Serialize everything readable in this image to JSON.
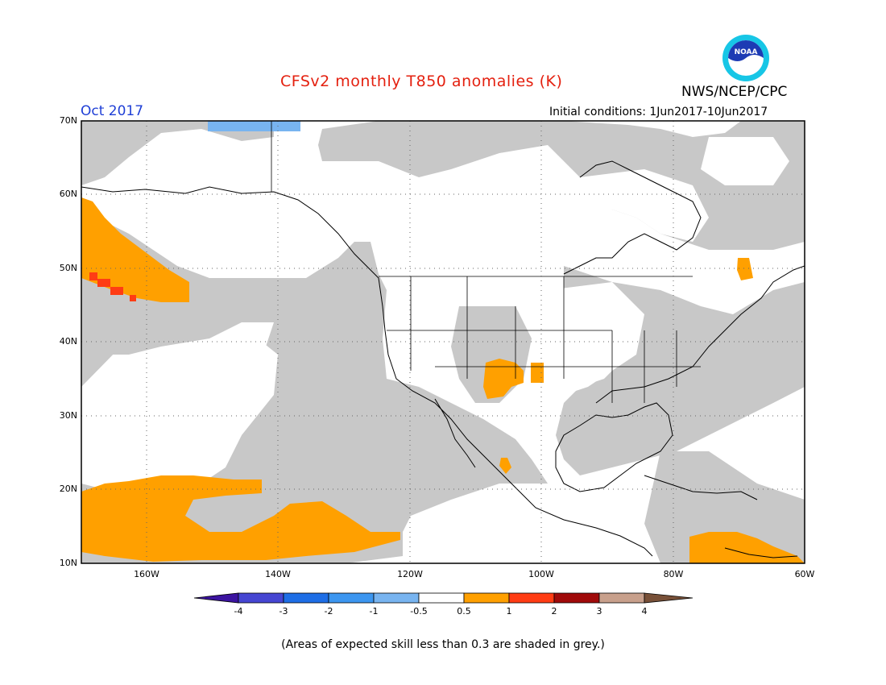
{
  "header": {
    "title": "CFSv2 monthly T850 anomalies (K)",
    "agency": "NWS/NCEP/CPC",
    "month": "Oct 2017",
    "initial_conditions": "Initial conditions: 1Jun2017-10Jun2017",
    "logo_text": "NOAA"
  },
  "map": {
    "lat_labels": [
      "70N",
      "60N",
      "50N",
      "40N",
      "30N",
      "20N",
      "10N"
    ],
    "lon_labels": [
      "160W",
      "140W",
      "120W",
      "100W",
      "80W",
      "60W"
    ],
    "colors": {
      "skill_mask": "#c8c8c8",
      "ocean_land": "#ffffff",
      "positive_0_5_1": "#ffa000",
      "positive_1_2": "#ff3c14",
      "negative_minus1_minus0_5": "#78b4f0"
    }
  },
  "colorbar": {
    "tick_labels": [
      "-4",
      "-3",
      "-2",
      "-1",
      "-0.5",
      "0.5",
      "1",
      "2",
      "3",
      "4"
    ],
    "colors": [
      "#3c14a0",
      "#4646d2",
      "#1e6ee6",
      "#3c96f0",
      "#78b4f0",
      "#ffffff",
      "#ffa000",
      "#ff3c14",
      "#a00a0a",
      "#c8a08c",
      "#785038"
    ]
  },
  "footnote": "(Areas of expected skill less than 0.3 are shaded in grey.)"
}
